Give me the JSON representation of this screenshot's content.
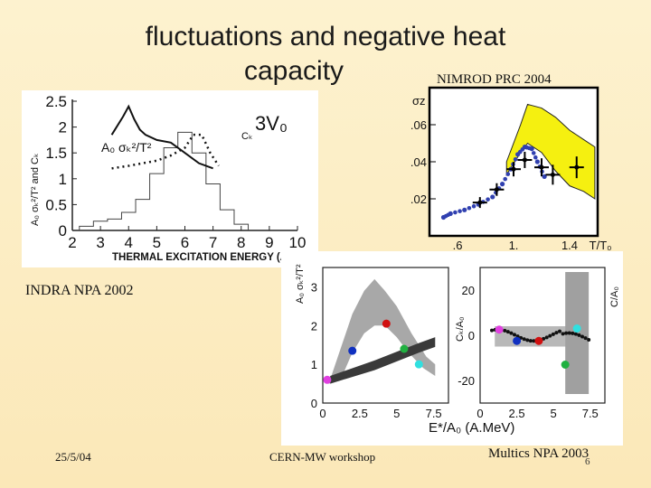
{
  "slide": {
    "title_line1": "fluctuations and  negative heat",
    "title_line2": "capacity",
    "ref_nimrod": "NIMROD PRC 2004",
    "ref_indra": "INDRA NPA 2002",
    "ref_multics": "Multics NPA 2003",
    "footer_date": "25/5/04",
    "footer_event": "CERN-MW workshop",
    "page_number": "6"
  },
  "chart_data": [
    {
      "id": "indra",
      "type": "line",
      "title": "",
      "xlabel": "THERMAL EXCITATION ENERGY (A.Me",
      "ylabel": "A₀ σₖ²/T² and Cₖ",
      "xlim": [
        2,
        10
      ],
      "ylim": [
        0,
        2.5
      ],
      "xticks": [
        "2",
        "3",
        "4",
        "5",
        "6",
        "7",
        "8",
        "9",
        "10"
      ],
      "yticks": [
        "0",
        "0.5",
        "1",
        "1.5",
        "2",
        "2.5"
      ],
      "annotations": [
        "3V₀",
        "Cₖ",
        "A₀ σₖ²/T²"
      ],
      "series": [
        {
          "name": "C_k",
          "style": "solid",
          "x": [
            3.4,
            3.8,
            4.0,
            4.2,
            4.4,
            4.6,
            5.0,
            5.5,
            6.0,
            6.5,
            7.0
          ],
          "y": [
            1.85,
            2.2,
            2.4,
            2.15,
            1.95,
            1.85,
            1.75,
            1.7,
            1.5,
            1.3,
            1.2
          ]
        },
        {
          "name": "A0 sigma_k^2/T^2",
          "style": "dotted",
          "x": [
            3.4,
            4.0,
            4.5,
            5.0,
            5.5,
            6.0,
            6.3,
            6.6,
            6.9,
            7.2
          ],
          "y": [
            1.2,
            1.25,
            1.3,
            1.35,
            1.45,
            1.6,
            1.85,
            1.85,
            1.5,
            1.25
          ]
        },
        {
          "name": "distribution",
          "style": "histogram",
          "x": [
            2.5,
            3.0,
            3.5,
            4.0,
            4.5,
            5.0,
            5.5,
            6.0,
            6.5,
            7.0,
            7.5,
            8.0
          ],
          "y": [
            0.08,
            0.18,
            0.22,
            0.35,
            0.6,
            1.1,
            1.6,
            1.9,
            1.5,
            0.9,
            0.4,
            0.12
          ]
        }
      ]
    },
    {
      "id": "nimrod",
      "type": "line",
      "title": "",
      "xlabel": "T/T₀",
      "ylabel": "σz",
      "xlim": [
        0.4,
        1.6
      ],
      "ylim": [
        0,
        0.08
      ],
      "xticks": [
        ".6",
        "1.",
        "1.4",
        "T/T₀"
      ],
      "yticks": [
        ".02",
        ".04",
        ".06"
      ],
      "series": [
        {
          "name": "band_upper",
          "x": [
            0.95,
            1.05,
            1.1,
            1.2,
            1.3,
            1.4,
            1.5,
            1.58
          ],
          "y": [
            0.04,
            0.06,
            0.071,
            0.069,
            0.064,
            0.057,
            0.052,
            0.048
          ]
        },
        {
          "name": "band_lower",
          "x": [
            0.95,
            1.05,
            1.1,
            1.2,
            1.3,
            1.4,
            1.5,
            1.58
          ],
          "y": [
            0.033,
            0.045,
            0.05,
            0.045,
            0.035,
            0.027,
            0.024,
            0.02
          ]
        },
        {
          "name": "blue_dots",
          "x": [
            0.5,
            0.55,
            0.65,
            0.75,
            0.85,
            0.92,
            0.98,
            1.03,
            1.08,
            1.13,
            1.17,
            1.22
          ],
          "y": [
            0.01,
            0.012,
            0.014,
            0.017,
            0.021,
            0.028,
            0.036,
            0.044,
            0.048,
            0.047,
            0.04,
            0.032
          ]
        },
        {
          "name": "data_points",
          "x": [
            0.76,
            0.88,
            1.0,
            1.08,
            1.2,
            1.28,
            1.45
          ],
          "y": [
            0.018,
            0.025,
            0.036,
            0.041,
            0.037,
            0.033,
            0.037
          ]
        }
      ]
    },
    {
      "id": "multics_left",
      "type": "scatter",
      "title": "",
      "xlabel": "E*/A₀ (A.MeV)",
      "ylabel": "A₀ σₖ²/T²",
      "xlim": [
        0,
        8.5
      ],
      "ylim": [
        0,
        3.5
      ],
      "xticks": [
        "0",
        "2.5",
        "5",
        "7.5"
      ],
      "yticks": [
        "0",
        "1",
        "2",
        "3"
      ],
      "points": [
        {
          "x": 0.3,
          "y": 0.6,
          "color": "#e040e0"
        },
        {
          "x": 2.0,
          "y": 1.35,
          "color": "#1030c0"
        },
        {
          "x": 4.3,
          "y": 2.05,
          "color": "#d01010"
        },
        {
          "x": 5.5,
          "y": 1.4,
          "color": "#20b040"
        },
        {
          "x": 6.5,
          "y": 1.0,
          "color": "#30e0e0"
        }
      ]
    },
    {
      "id": "multics_right",
      "type": "scatter",
      "title": "",
      "xlabel": "",
      "ylabel": "Cₖ/A₀",
      "y2label": "C/A₀",
      "xlim": [
        0,
        8.5
      ],
      "ylim": [
        -30,
        30
      ],
      "xticks": [
        "0",
        "2.5",
        "5",
        "7.5"
      ],
      "yticks": [
        "-20",
        "0",
        "20"
      ],
      "points": [
        {
          "x": 1.3,
          "y": 2.5,
          "color": "#e040e0"
        },
        {
          "x": 2.5,
          "y": -2.5,
          "color": "#1030c0"
        },
        {
          "x": 4.0,
          "y": -2.5,
          "color": "#d01010"
        },
        {
          "x": 5.8,
          "y": -13,
          "color": "#20b040"
        },
        {
          "x": 6.6,
          "y": 3,
          "color": "#30e0e0"
        }
      ]
    }
  ],
  "colors": {
    "background": "#fcefc8",
    "band_yellow": "#f5f010",
    "blue_dots": "#3040b0",
    "gray_band": "#9a9a9a"
  }
}
